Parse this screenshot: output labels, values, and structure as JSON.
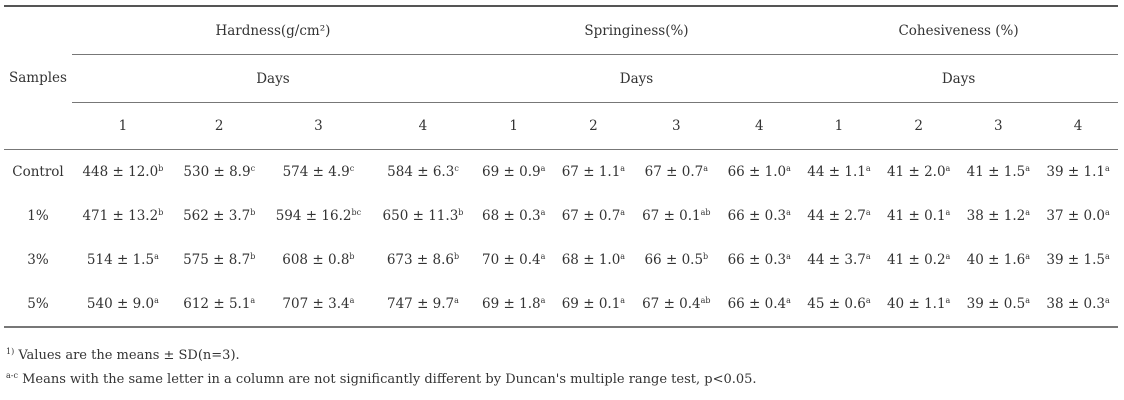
{
  "table": {
    "samples_header": "Samples",
    "groups": [
      "Hardness(g/cm²)",
      "Springiness(%)",
      "Cohesiveness (%)"
    ],
    "days_label": "Days",
    "day_numbers": [
      "1",
      "2",
      "3",
      "4"
    ],
    "rows": [
      {
        "sample": "Control",
        "cells": [
          [
            "448",
            "12.0",
            "b"
          ],
          [
            "530",
            "8.9",
            "c"
          ],
          [
            "574",
            "4.9",
            "c"
          ],
          [
            "584",
            "6.3",
            "c"
          ],
          [
            "69",
            "0.9",
            "a"
          ],
          [
            "67",
            "1.1",
            "a"
          ],
          [
            "67",
            "0.7",
            "a"
          ],
          [
            "66",
            "1.0",
            "a"
          ],
          [
            "44",
            "1.1",
            "a"
          ],
          [
            "41",
            "2.0",
            "a"
          ],
          [
            "41",
            "1.5",
            "a"
          ],
          [
            "39",
            "1.1",
            "a"
          ]
        ]
      },
      {
        "sample": "1%",
        "cells": [
          [
            "471",
            "13.2",
            "b"
          ],
          [
            "562",
            "3.7",
            "b"
          ],
          [
            "594",
            "16.2",
            "bc"
          ],
          [
            "650",
            "11.3",
            "b"
          ],
          [
            "68",
            "0.3",
            "a"
          ],
          [
            "67",
            "0.7",
            "a"
          ],
          [
            "67",
            "0.1",
            "ab"
          ],
          [
            "66",
            "0.3",
            "a"
          ],
          [
            "44",
            "2.7",
            "a"
          ],
          [
            "41",
            "0.1",
            "a"
          ],
          [
            "38",
            "1.2",
            "a"
          ],
          [
            "37",
            "0.0",
            "a"
          ]
        ]
      },
      {
        "sample": "3%",
        "cells": [
          [
            "514",
            "1.5",
            "a"
          ],
          [
            "575",
            "8.7",
            "b"
          ],
          [
            "608",
            "0.8",
            "b"
          ],
          [
            "673",
            "8.6",
            "b"
          ],
          [
            "70",
            "0.4",
            "a"
          ],
          [
            "68",
            "1.0",
            "a"
          ],
          [
            "66",
            "0.5",
            "b"
          ],
          [
            "66",
            "0.3",
            "a"
          ],
          [
            "44",
            "3.7",
            "a"
          ],
          [
            "41",
            "0.2",
            "a"
          ],
          [
            "40",
            "1.6",
            "a"
          ],
          [
            "39",
            "1.5",
            "a"
          ]
        ]
      },
      {
        "sample": "5%",
        "cells": [
          [
            "540",
            "9.0",
            "a"
          ],
          [
            "612",
            "5.1",
            "a"
          ],
          [
            "707",
            "3.4",
            "a"
          ],
          [
            "747",
            "9.7",
            "a"
          ],
          [
            "69",
            "1.8",
            "a"
          ],
          [
            "69",
            "0.1",
            "a"
          ],
          [
            "67",
            "0.4",
            "ab"
          ],
          [
            "66",
            "0.4",
            "a"
          ],
          [
            "45",
            "0.6",
            "a"
          ],
          [
            "40",
            "1.1",
            "a"
          ],
          [
            "39",
            "0.5",
            "a"
          ],
          [
            "38",
            "0.3",
            "a"
          ]
        ]
      }
    ],
    "pm": "±"
  },
  "footnotes": [
    {
      "mark": "1)",
      "text": "Values are the means ± SD(n=3)."
    },
    {
      "mark": "a-c",
      "text": "Means with the same letter in a column are not significantly different by Duncan's multiple range test, p<0.05."
    }
  ]
}
